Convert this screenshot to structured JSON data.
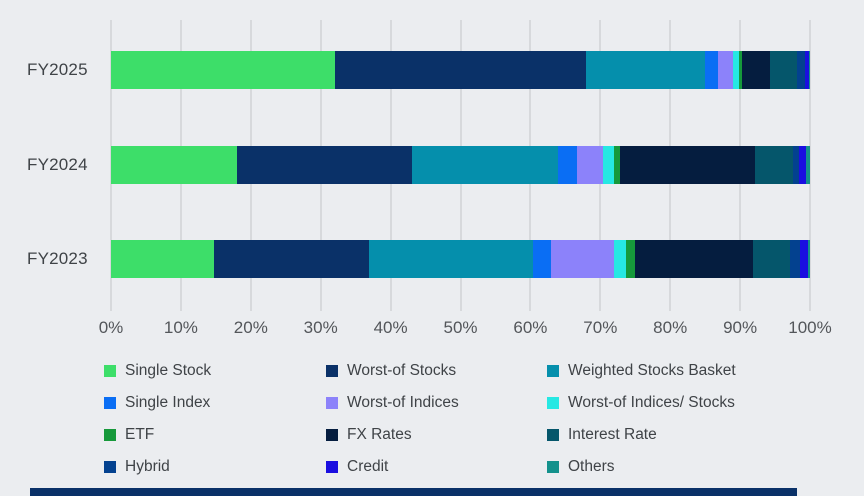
{
  "page": {
    "background_color": "#ebedf0",
    "gridline_color": "#d7d9dc",
    "footer_bar_color": "#0a3168",
    "text_color": "#3f4347",
    "tick_color": "#53565a"
  },
  "chart_data": {
    "type": "bar",
    "orientation": "horizontal",
    "stacked": true,
    "unit": "percent",
    "grid": true,
    "legend_position": "bottom",
    "categories": [
      "FY2025",
      "FY2024",
      "FY2023"
    ],
    "x_axis": {
      "min": 0,
      "max": 100,
      "tick_step": 10,
      "ticks": [
        "0%",
        "10%",
        "20%",
        "30%",
        "40%",
        "50%",
        "60%",
        "70%",
        "80%",
        "90%",
        "100%"
      ]
    },
    "series": [
      {
        "name": "Single Stock",
        "color": "#3dde69",
        "values": [
          32.0,
          18.0,
          14.7
        ]
      },
      {
        "name": "Worst-of Stocks",
        "color": "#0a3168",
        "values": [
          36.0,
          25.0,
          22.2
        ]
      },
      {
        "name": "Weighted Stocks Basket",
        "color": "#058fac",
        "values": [
          17.0,
          21.0,
          23.5
        ]
      },
      {
        "name": "Single Index",
        "color": "#0a6ef4",
        "values": [
          1.8,
          2.7,
          2.6
        ]
      },
      {
        "name": "Worst-of Indices",
        "color": "#8c82fa",
        "values": [
          2.2,
          3.7,
          9.0
        ]
      },
      {
        "name": "Worst-of Indices/ Stocks",
        "color": "#26e8e3",
        "values": [
          0.8,
          1.6,
          1.7
        ]
      },
      {
        "name": "ETF",
        "color": "#16993b",
        "values": [
          0.5,
          0.8,
          1.2
        ]
      },
      {
        "name": "FX Rates",
        "color": "#051d3f",
        "values": [
          4.0,
          19.4,
          17.0
        ]
      },
      {
        "name": "Interest Rate",
        "color": "#05566b",
        "values": [
          3.8,
          5.4,
          5.3
        ]
      },
      {
        "name": "Hybrid",
        "color": "#03418f",
        "values": [
          1.2,
          0.9,
          1.4
        ]
      },
      {
        "name": "Credit",
        "color": "#1a0ee0",
        "values": [
          0.5,
          1.0,
          1.1
        ]
      },
      {
        "name": "Others",
        "color": "#13918c",
        "values": [
          0.2,
          0.5,
          0.3
        ]
      }
    ]
  }
}
